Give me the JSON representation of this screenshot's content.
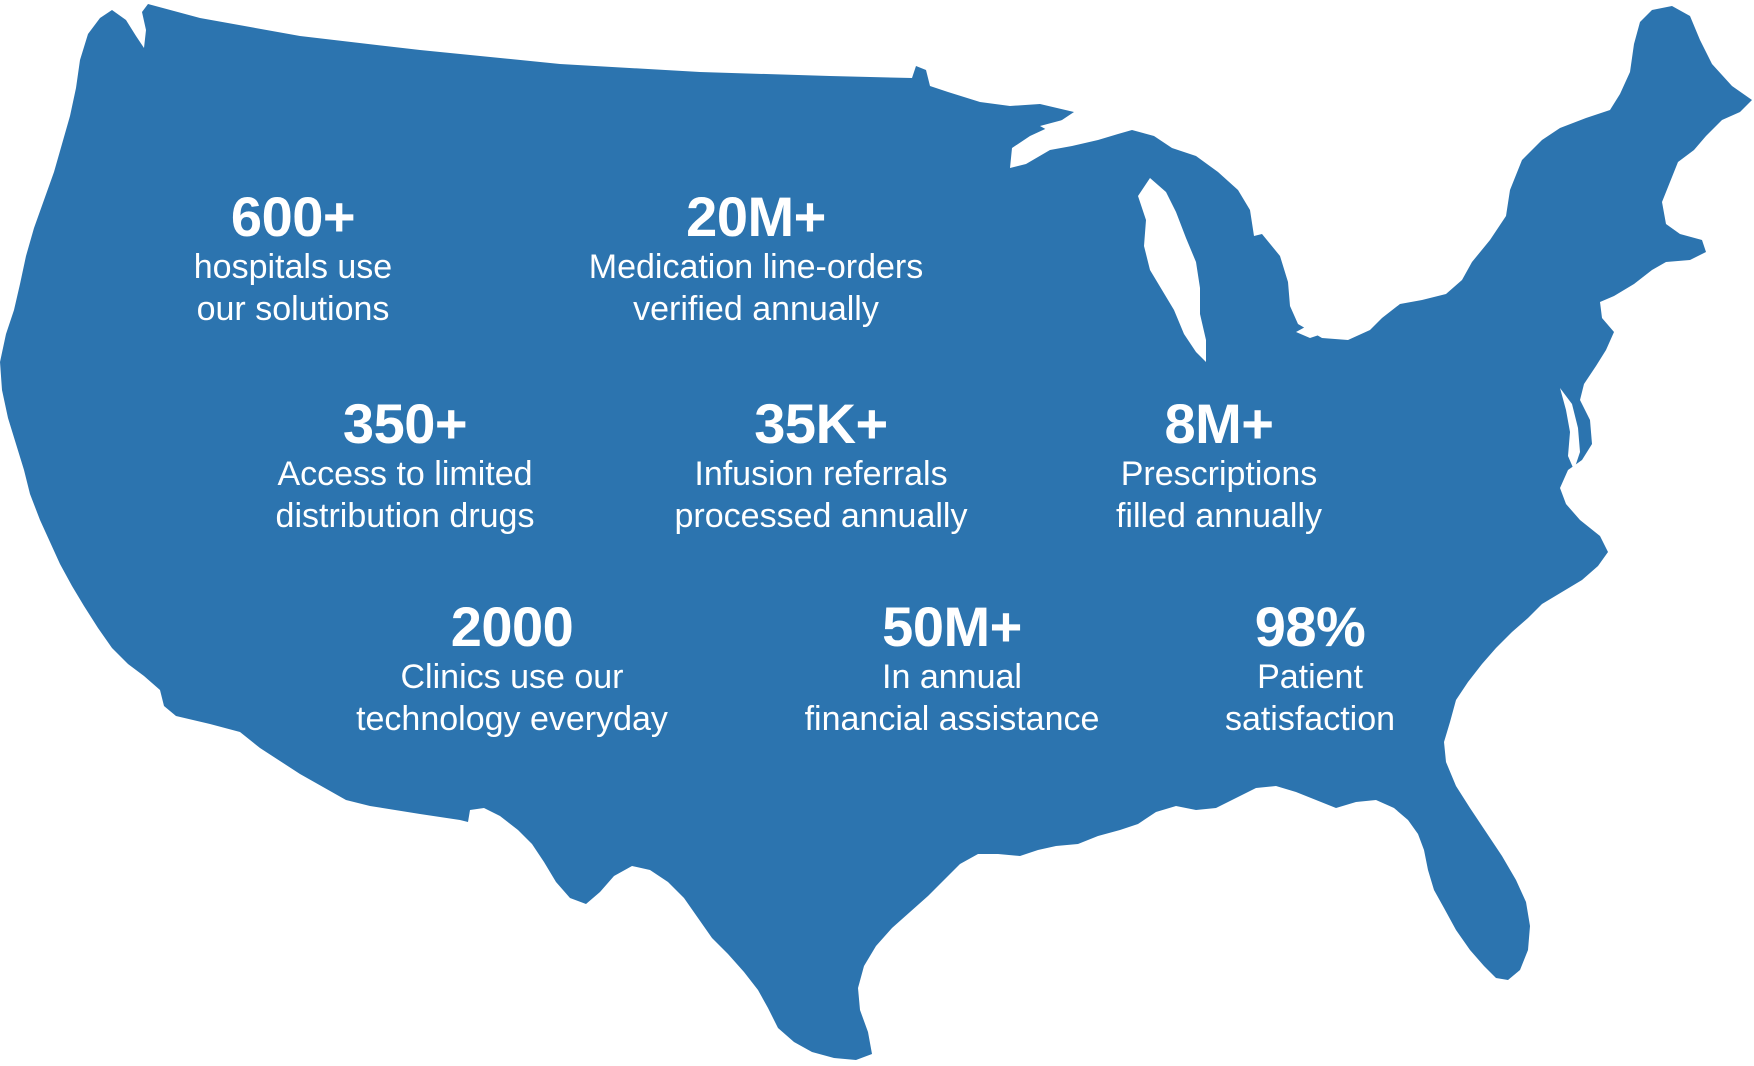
{
  "colors": {
    "map_fill": "#2C74AF",
    "lakes": "#ffffff",
    "text": "#ffffff",
    "background": "#ffffff"
  },
  "stats": [
    {
      "value": "600+",
      "line1": "hospitals use",
      "line2": "our solutions"
    },
    {
      "value": "20M+",
      "line1": "Medication line-orders",
      "line2": "verified annually"
    },
    {
      "value": "350+",
      "line1": "Access to limited",
      "line2": "distribution drugs"
    },
    {
      "value": "35K+",
      "line1": "Infusion referrals",
      "line2": "processed annually"
    },
    {
      "value": "8M+",
      "line1": "Prescriptions",
      "line2": "filled annually"
    },
    {
      "value": "2000",
      "line1": "Clinics use our",
      "line2": "technology everyday"
    },
    {
      "value": "50M+",
      "line1": "In annual",
      "line2": "financial assistance"
    },
    {
      "value": "98%",
      "line1": "Patient",
      "line2": "satisfaction"
    }
  ]
}
